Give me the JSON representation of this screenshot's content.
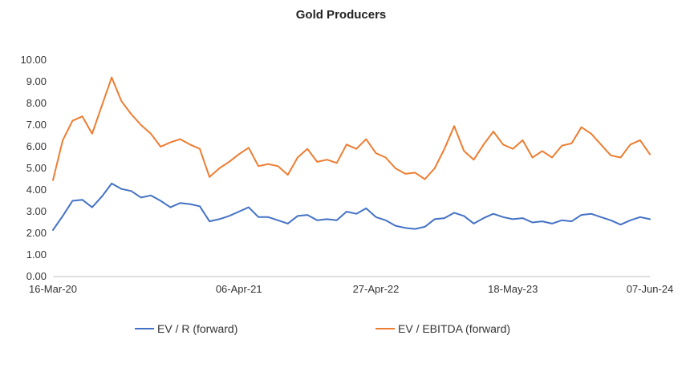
{
  "chart_data": {
    "type": "line",
    "title": "Gold Producers",
    "xlabel": "",
    "ylabel": "",
    "ylim": [
      0,
      10
    ],
    "yticks": [
      "0.00",
      "1.00",
      "2.00",
      "3.00",
      "4.00",
      "5.00",
      "6.00",
      "7.00",
      "8.00",
      "9.00",
      "10.00"
    ],
    "x_tick_labels": [
      "16-Mar-20",
      "06-Apr-21",
      "27-Apr-22",
      "18-May-23",
      "07-Jun-24"
    ],
    "grid": false,
    "legend_position": "bottom",
    "x": [
      "16-Mar-20",
      "2020-04-06",
      "2020-04-27",
      "2020-05-18",
      "2020-06-08",
      "2020-06-29",
      "2020-07-20",
      "2020-08-10",
      "2020-08-31",
      "2020-09-21",
      "2020-10-12",
      "2020-11-02",
      "2020-11-23",
      "2020-12-14",
      "2021-01-04",
      "2021-01-25",
      "2021-02-15",
      "2021-03-08",
      "2021-03-29",
      "06-Apr-21",
      "2021-05-10",
      "2021-06-07",
      "2021-07-05",
      "2021-08-02",
      "2021-08-30",
      "2021-09-27",
      "2021-10-25",
      "2021-11-22",
      "2021-12-20",
      "2022-01-17",
      "2022-02-14",
      "2022-03-14",
      "2022-04-11",
      "27-Apr-22",
      "2022-05-30",
      "2022-06-27",
      "2022-07-25",
      "2022-08-22",
      "2022-09-19",
      "2022-10-17",
      "2022-11-14",
      "2022-12-12",
      "2023-01-09",
      "2023-02-06",
      "2023-03-06",
      "2023-04-03",
      "2023-05-01",
      "18-May-23",
      "2023-06-19",
      "2023-07-17",
      "2023-08-14",
      "2023-09-11",
      "2023-10-09",
      "2023-11-06",
      "2023-12-04",
      "2024-01-01",
      "2024-01-29",
      "2024-02-26",
      "2024-03-25",
      "2024-04-22",
      "2024-05-20",
      "07-Jun-24"
    ],
    "series": [
      {
        "name": "EV / R (forward)",
        "color": "#4472C4",
        "values": [
          2.15,
          2.8,
          3.5,
          3.55,
          3.2,
          3.7,
          4.3,
          4.05,
          3.95,
          3.65,
          3.75,
          3.5,
          3.2,
          3.4,
          3.35,
          3.25,
          2.55,
          2.65,
          2.8,
          3.0,
          3.2,
          2.75,
          2.75,
          2.6,
          2.45,
          2.8,
          2.85,
          2.6,
          2.65,
          2.6,
          3.0,
          2.9,
          3.15,
          2.75,
          2.6,
          2.35,
          2.25,
          2.2,
          2.3,
          2.65,
          2.7,
          2.95,
          2.8,
          2.45,
          2.7,
          2.9,
          2.75,
          2.65,
          2.7,
          2.5,
          2.55,
          2.45,
          2.6,
          2.55,
          2.85,
          2.9,
          2.75,
          2.6,
          2.4,
          2.6,
          2.75,
          2.65
        ]
      },
      {
        "name": "EV / EBITDA (forward)",
        "color": "#ED7D31",
        "values": [
          4.45,
          6.3,
          7.2,
          7.4,
          6.6,
          7.9,
          9.2,
          8.1,
          7.5,
          7.0,
          6.6,
          6.0,
          6.2,
          6.35,
          6.1,
          5.9,
          4.6,
          5.0,
          5.3,
          5.65,
          5.95,
          5.1,
          5.2,
          5.1,
          4.7,
          5.5,
          5.9,
          5.3,
          5.4,
          5.25,
          6.1,
          5.9,
          6.35,
          5.7,
          5.5,
          5.0,
          4.75,
          4.8,
          4.5,
          5.0,
          5.9,
          6.95,
          5.8,
          5.4,
          6.1,
          6.7,
          6.1,
          5.9,
          6.3,
          5.5,
          5.8,
          5.5,
          6.05,
          6.15,
          6.9,
          6.6,
          6.1,
          5.6,
          5.5,
          6.1,
          6.3,
          5.65
        ]
      }
    ]
  }
}
